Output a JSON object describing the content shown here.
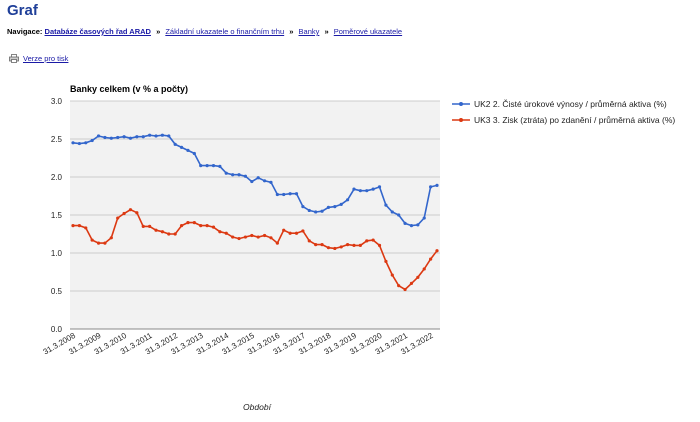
{
  "page": {
    "title": "Graf",
    "nav_label": "Navigace:",
    "breadcrumb": [
      "Databáze časových řad ARAD",
      "Základní ukazatele o finančním trhu",
      "Banky",
      "Poměrové ukazatele"
    ],
    "print_label": "Verze pro tisk",
    "print_icon": "printer-icon"
  },
  "chart_data": {
    "type": "line",
    "title": "Banky celkem (v % a počty)",
    "xlabel": "Období",
    "ylabel": "",
    "ylim": [
      0,
      3.0
    ],
    "yticks": [
      0.0,
      0.5,
      1.0,
      1.5,
      2.0,
      2.5,
      3.0
    ],
    "ytick_labels": [
      "0.0",
      "0.5",
      "1.0",
      "1.5",
      "2.0",
      "2.5",
      "3.0"
    ],
    "xticks": [
      "31.3.2008",
      "31.3.2009",
      "31.3.2010",
      "31.3.2011",
      "31.3.2012",
      "31.3.2013",
      "31.3.2014",
      "31.3.2015",
      "31.3.2016",
      "31.3.2017",
      "31.3.2018",
      "31.3.2019",
      "31.3.2020",
      "31.3.2021",
      "31.3.2022"
    ],
    "grid": true,
    "legend_position": "right",
    "x_start": "2008-03-31",
    "x_step": "quarter",
    "series": [
      {
        "name": "UK2 2. Čisté úrokové výnosy / průměrná aktiva (%)",
        "color": "#3366cc",
        "values": [
          2.45,
          2.44,
          2.45,
          2.48,
          2.54,
          2.52,
          2.51,
          2.52,
          2.53,
          2.51,
          2.53,
          2.53,
          2.55,
          2.54,
          2.55,
          2.54,
          2.43,
          2.39,
          2.35,
          2.31,
          2.15,
          2.15,
          2.15,
          2.14,
          2.05,
          2.03,
          2.03,
          2.01,
          1.94,
          1.99,
          1.95,
          1.93,
          1.77,
          1.77,
          1.78,
          1.78,
          1.61,
          1.56,
          1.54,
          1.55,
          1.6,
          1.61,
          1.64,
          1.7,
          1.84,
          1.82,
          1.82,
          1.84,
          1.87,
          1.63,
          1.54,
          1.5,
          1.39,
          1.36,
          1.37,
          1.46,
          1.87,
          1.89
        ]
      },
      {
        "name": "UK3 3. Zisk (ztráta) po zdanění / průměrná aktiva (%)",
        "color": "#dc3912",
        "values": [
          1.36,
          1.36,
          1.33,
          1.17,
          1.13,
          1.13,
          1.2,
          1.46,
          1.52,
          1.57,
          1.53,
          1.35,
          1.35,
          1.3,
          1.28,
          1.25,
          1.25,
          1.36,
          1.4,
          1.4,
          1.36,
          1.36,
          1.34,
          1.28,
          1.26,
          1.21,
          1.19,
          1.21,
          1.23,
          1.21,
          1.23,
          1.2,
          1.13,
          1.3,
          1.26,
          1.26,
          1.29,
          1.16,
          1.11,
          1.11,
          1.07,
          1.06,
          1.08,
          1.11,
          1.1,
          1.1,
          1.16,
          1.17,
          1.1,
          0.89,
          0.71,
          0.57,
          0.52,
          0.6,
          0.68,
          0.79,
          0.92,
          1.03
        ]
      }
    ]
  }
}
